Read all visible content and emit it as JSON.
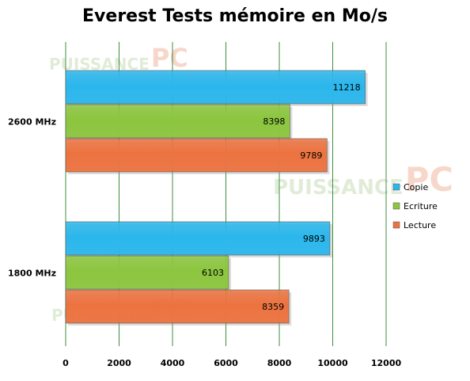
{
  "chart_data": {
    "type": "bar",
    "orientation": "horizontal",
    "title": "Everest Tests mémoire en Mo/s",
    "categories": [
      "2600 MHz",
      "1800 MHz"
    ],
    "series": [
      {
        "name": "Copie",
        "values": [
          11218,
          9893
        ],
        "color": "#2bb7ec"
      },
      {
        "name": "Ecriture",
        "values": [
          8398,
          6103
        ],
        "color": "#8cc63f"
      },
      {
        "name": "Lecture",
        "values": [
          9789,
          8359
        ],
        "color": "#ec7340"
      }
    ],
    "xlim": [
      0,
      12000
    ],
    "xticks": [
      0,
      2000,
      4000,
      6000,
      8000,
      10000,
      12000
    ],
    "grid": true,
    "gridline_color": "#3f8f3f",
    "legend_position": "right"
  },
  "watermark": {
    "text": "PUISSANCE",
    "suffix": "PC"
  }
}
